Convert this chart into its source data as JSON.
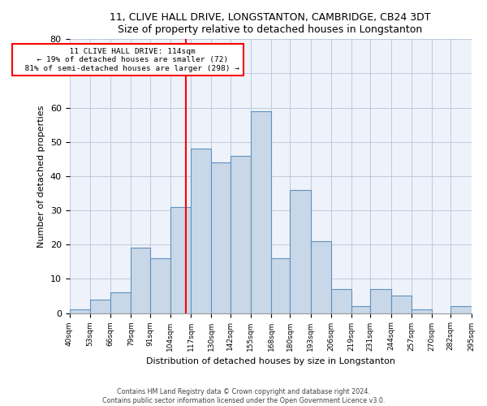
{
  "title1": "11, CLIVE HALL DRIVE, LONGSTANTON, CAMBRIDGE, CB24 3DT",
  "title2": "Size of property relative to detached houses in Longstanton",
  "xlabel": "Distribution of detached houses by size in Longstanton",
  "ylabel": "Number of detached properties",
  "footnote1": "Contains HM Land Registry data © Crown copyright and database right 2024.",
  "footnote2": "Contains public sector information licensed under the Open Government Licence v3.0.",
  "annotation_line1": "11 CLIVE HALL DRIVE: 114sqm",
  "annotation_line2": "← 19% of detached houses are smaller (72)",
  "annotation_line3": "81% of semi-detached houses are larger (298) →",
  "property_size": 114,
  "bar_color": "#c8d8e8",
  "bar_edge_color": "#6090c0",
  "vline_color": "red",
  "background_color": "#eef2fa",
  "bins": [
    40,
    53,
    66,
    79,
    91,
    104,
    117,
    130,
    142,
    155,
    168,
    180,
    193,
    206,
    219,
    231,
    244,
    257,
    270,
    282,
    295
  ],
  "counts": [
    1,
    4,
    6,
    19,
    16,
    31,
    48,
    44,
    46,
    59,
    16,
    36,
    21,
    7,
    2,
    7,
    5,
    1,
    0,
    2
  ],
  "ylim": [
    0,
    80
  ],
  "yticks": [
    0,
    10,
    20,
    30,
    40,
    50,
    60,
    70,
    80
  ],
  "figsize": [
    6.0,
    5.0
  ],
  "dpi": 100
}
